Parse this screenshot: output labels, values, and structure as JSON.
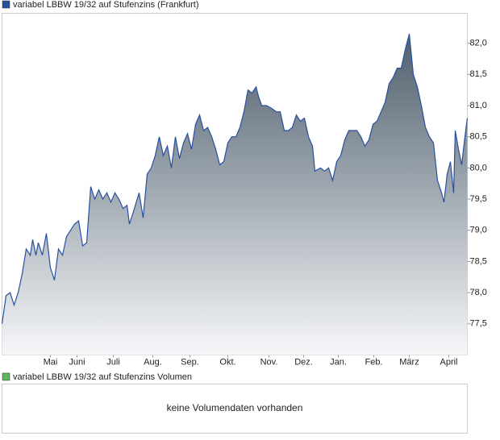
{
  "chart_data": {
    "type": "area",
    "title": "variabel LBBW 19/32 auf Stufenzins (Frankfurt)",
    "series": [
      {
        "name": "variabel LBBW 19/32 auf Stufenzins (Frankfurt)",
        "color": "#2850a0",
        "x": [
          0,
          5,
          10,
          15,
          20,
          25,
          30,
          35,
          38,
          42,
          45,
          50,
          55,
          60,
          65,
          70,
          75,
          80,
          85,
          90,
          95,
          100,
          105,
          110,
          115,
          120,
          125,
          130,
          135,
          140,
          145,
          150,
          155,
          158,
          163,
          170,
          175,
          180,
          185,
          190,
          195,
          200,
          205,
          210,
          215,
          220,
          225,
          230,
          235,
          240,
          245,
          250,
          255,
          260,
          265,
          270,
          275,
          280,
          285,
          290,
          295,
          300,
          305,
          310,
          315,
          318,
          322,
          328,
          335,
          340,
          345,
          350,
          355,
          360,
          365,
          370,
          375,
          380,
          385,
          388,
          395,
          400,
          405,
          410,
          415,
          420,
          425,
          430,
          435,
          440,
          445,
          450,
          455,
          460,
          465,
          470,
          475,
          480,
          485,
          490,
          495,
          500,
          505,
          510,
          515,
          520,
          525,
          530,
          535,
          540,
          545,
          548,
          552,
          556,
          560,
          562,
          566,
          570,
          574,
          577
        ],
        "values": [
          77.5,
          77.95,
          78.0,
          77.8,
          78.0,
          78.3,
          78.7,
          78.6,
          78.85,
          78.6,
          78.8,
          78.6,
          78.95,
          78.4,
          78.2,
          78.7,
          78.6,
          78.9,
          79.0,
          79.1,
          79.15,
          78.75,
          78.8,
          79.7,
          79.5,
          79.65,
          79.5,
          79.6,
          79.45,
          79.6,
          79.5,
          79.35,
          79.4,
          79.1,
          79.3,
          79.6,
          79.2,
          79.9,
          80.0,
          80.2,
          80.5,
          80.2,
          80.35,
          80.0,
          80.5,
          80.15,
          80.4,
          80.55,
          80.3,
          80.7,
          80.85,
          80.6,
          80.65,
          80.5,
          80.3,
          80.05,
          80.1,
          80.4,
          80.5,
          80.5,
          80.65,
          80.9,
          81.25,
          81.2,
          81.3,
          81.15,
          81.0,
          81.0,
          80.95,
          80.9,
          80.9,
          80.6,
          80.6,
          80.65,
          80.85,
          80.75,
          80.8,
          80.5,
          80.35,
          79.95,
          80.0,
          79.95,
          80.0,
          79.8,
          80.1,
          80.2,
          80.45,
          80.6,
          80.6,
          80.6,
          80.5,
          80.35,
          80.45,
          80.7,
          80.75,
          80.9,
          81.05,
          81.35,
          81.45,
          81.6,
          81.6,
          81.9,
          82.15,
          81.5,
          81.3,
          81.0,
          80.65,
          80.5,
          80.4,
          79.8,
          79.6,
          79.45,
          79.9,
          80.1,
          79.6,
          80.6,
          80.3,
          80.05,
          80.5,
          80.8
        ]
      }
    ],
    "xlim": [
      0,
      577
    ],
    "xticks": [
      {
        "value": 60,
        "label": "Mai"
      },
      {
        "value": 93,
        "label": "Juni"
      },
      {
        "value": 138,
        "label": "Juli"
      },
      {
        "value": 187,
        "label": "Aug."
      },
      {
        "value": 233,
        "label": "Sep."
      },
      {
        "value": 280,
        "label": "Okt."
      },
      {
        "value": 331,
        "label": "Nov."
      },
      {
        "value": 374,
        "label": "Dez."
      },
      {
        "value": 417,
        "label": "Jan."
      },
      {
        "value": 461,
        "label": "Feb."
      },
      {
        "value": 505,
        "label": "März"
      },
      {
        "value": 554,
        "label": "April"
      }
    ],
    "ylim": [
      77.0,
      82.48
    ],
    "yticks": [
      {
        "value": 77.5,
        "label": "77,5"
      },
      {
        "value": 78,
        "label": "78,0"
      },
      {
        "value": 78.5,
        "label": "78,5"
      },
      {
        "value": 79,
        "label": "79,0"
      },
      {
        "value": 79.5,
        "label": "79,5"
      },
      {
        "value": 80,
        "label": "80,0"
      },
      {
        "value": 80.5,
        "label": "80,5"
      },
      {
        "value": 81,
        "label": "81,0"
      },
      {
        "value": 81.5,
        "label": "81,5"
      },
      {
        "value": 82,
        "label": "82,0"
      }
    ],
    "grid": false
  },
  "volume_panel": {
    "legend": "variabel LBBW 19/32 auf Stufenzins Volumen",
    "color": "#5cb85c",
    "message": "keine Volumendaten vorhanden"
  }
}
